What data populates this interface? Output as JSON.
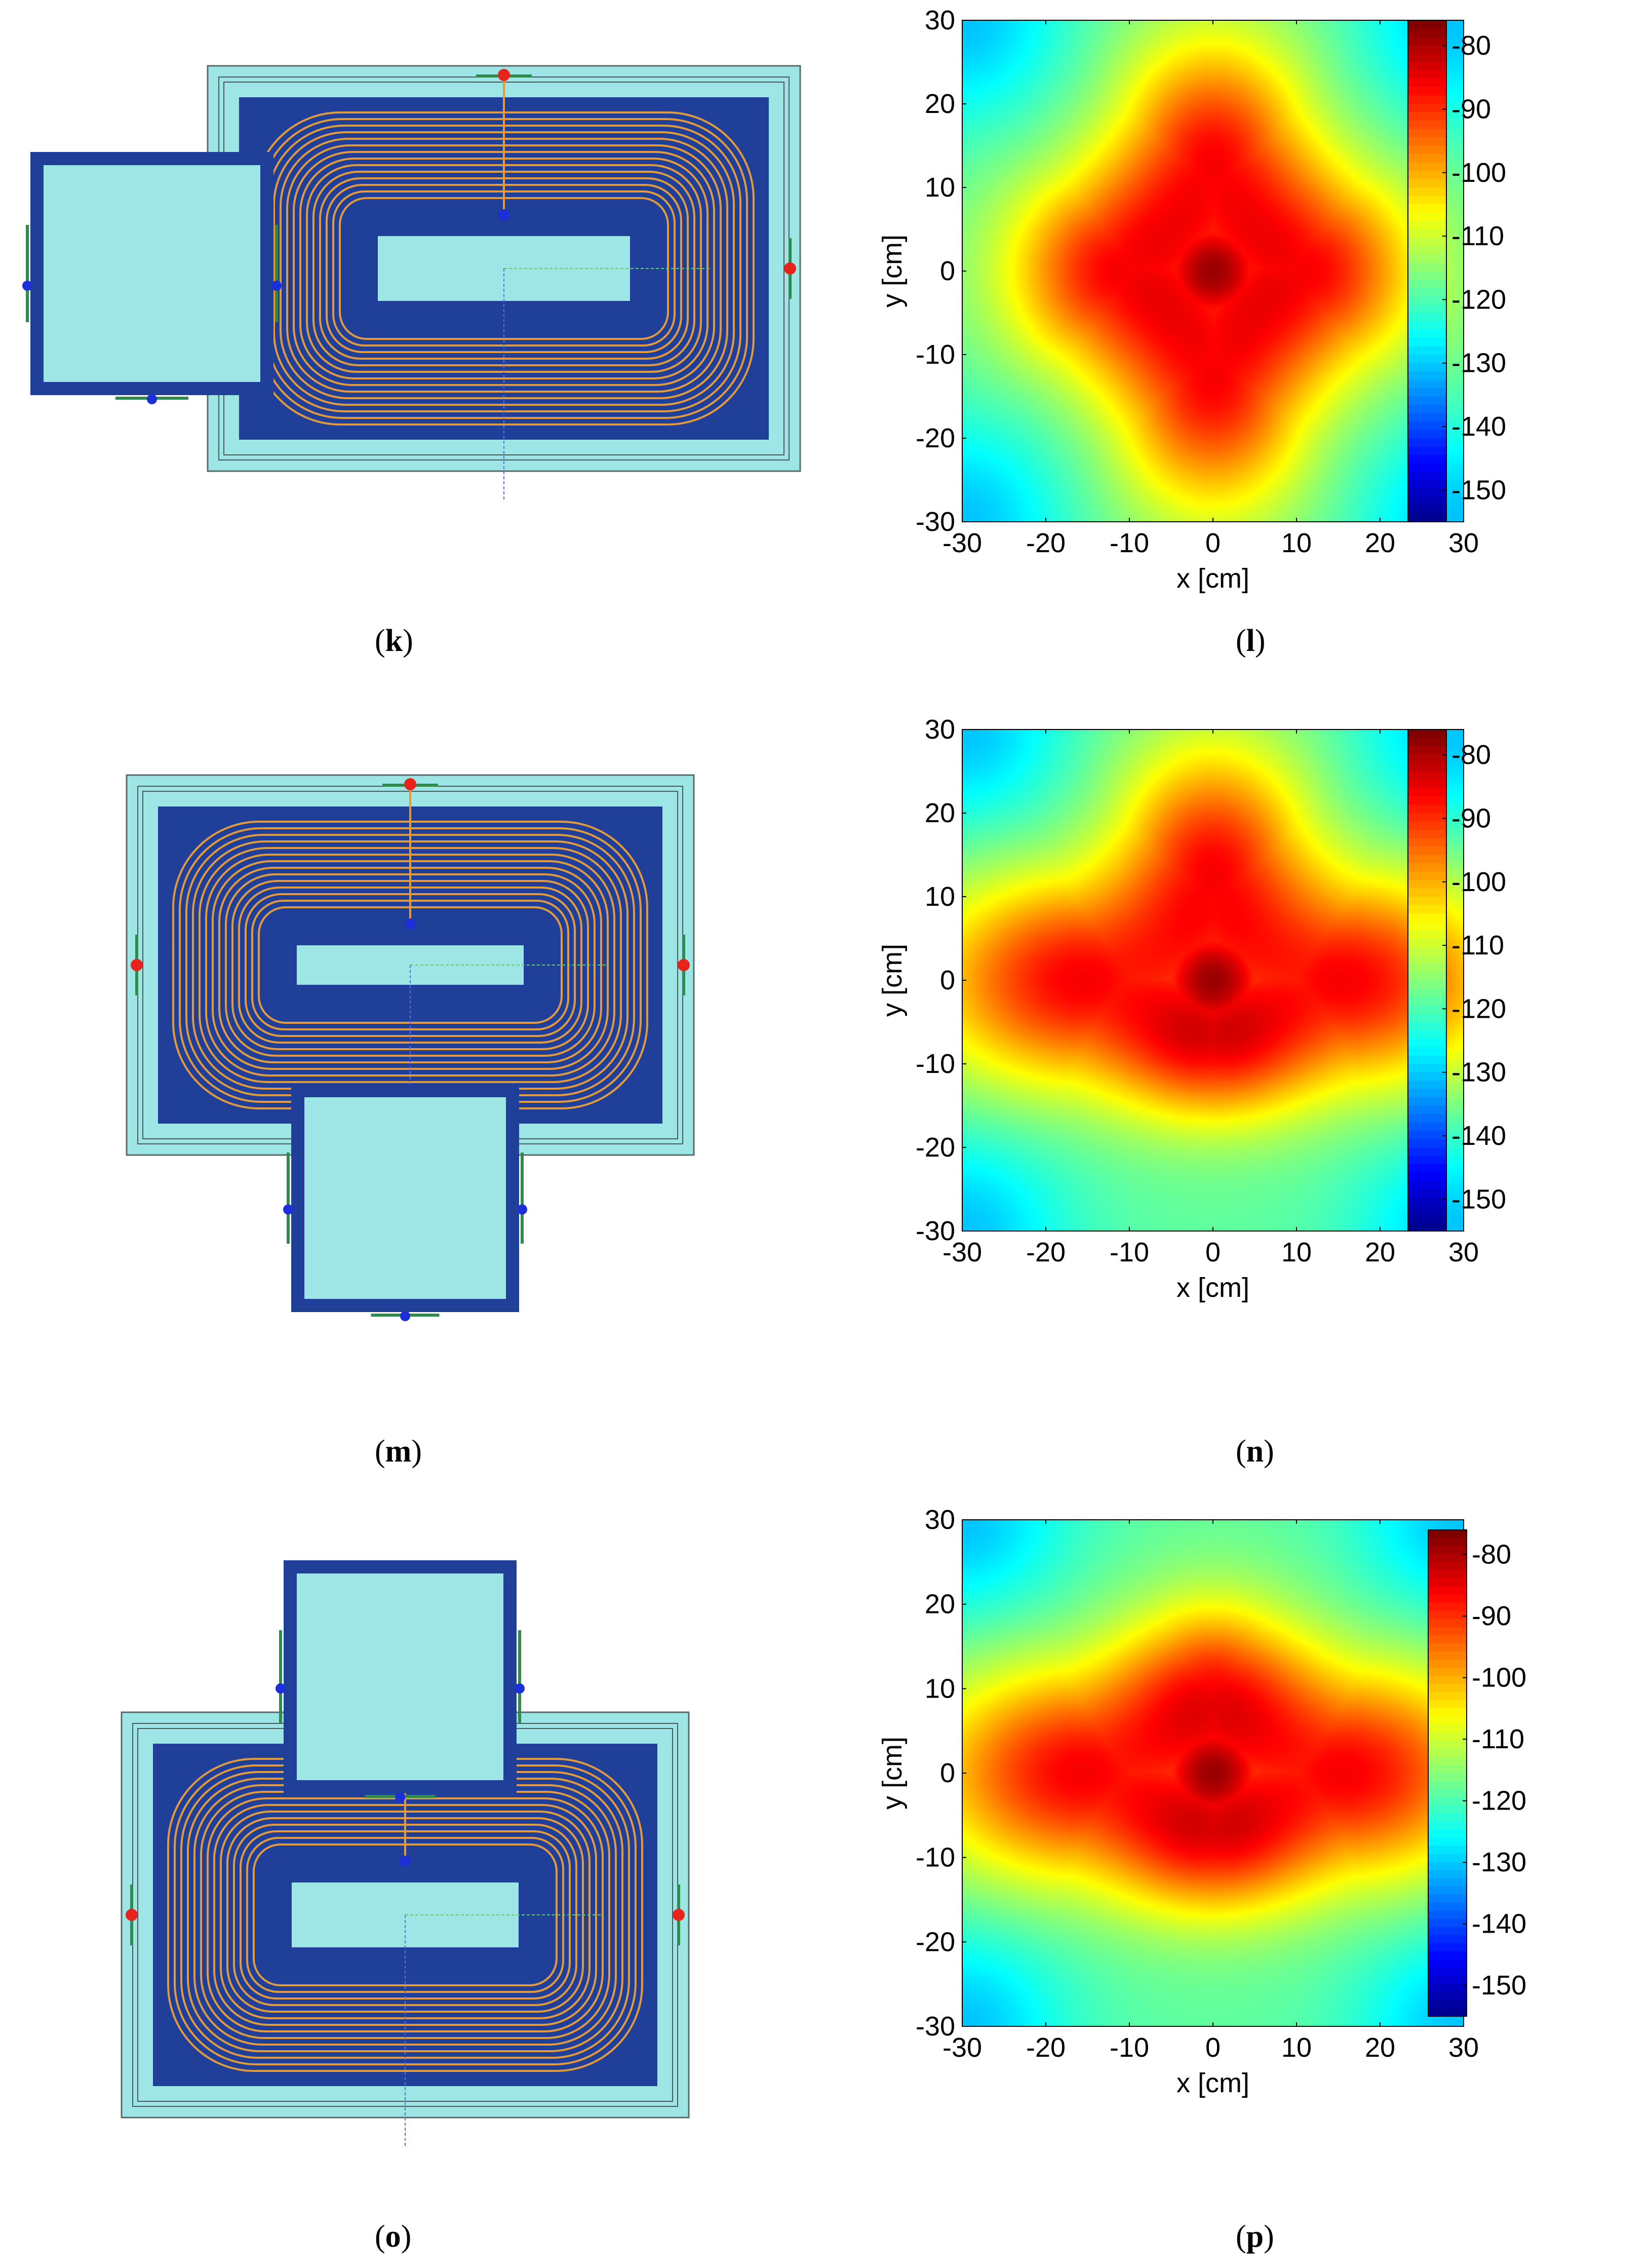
{
  "figure": {
    "panels": [
      {
        "id": "k",
        "kind": "coil-layout",
        "secondary_position": "left",
        "caption_letter": "k"
      },
      {
        "id": "l",
        "kind": "field-map",
        "caption_letter": "l",
        "chart_index": 0
      },
      {
        "id": "m",
        "kind": "coil-layout",
        "secondary_position": "bottom",
        "caption_letter": "m"
      },
      {
        "id": "n",
        "kind": "field-map",
        "caption_letter": "n",
        "chart_index": 1
      },
      {
        "id": "o",
        "kind": "coil-layout",
        "secondary_position": "top",
        "caption_letter": "o"
      },
      {
        "id": "p",
        "kind": "field-map",
        "caption_letter": "p",
        "chart_index": 2
      }
    ],
    "colors": {
      "coil_frame_light": "#9ee6e6",
      "coil_frame_dark": "#1f3f99",
      "winding": "#e39a3a",
      "terminal_red": "#e8231e",
      "terminal_blue": "#1d2fd8",
      "bracket_green": "#2e8b4c"
    }
  },
  "chart_data": [
    {
      "type": "heatmap",
      "xlabel": "x [cm]",
      "ylabel": "y [cm]",
      "xlim": [
        -30,
        30
      ],
      "ylim": [
        -30,
        30
      ],
      "x_ticks": [
        "-30",
        "-20",
        "-10",
        "0",
        "10",
        "20",
        "30"
      ],
      "y_ticks": [
        "30",
        "20",
        "10",
        "0",
        "-10",
        "-20",
        "-30"
      ],
      "colorbar": {
        "ticks": [
          "-80",
          "-90",
          "-100",
          "-110",
          "-120",
          "-130",
          "-140",
          "-150"
        ],
        "range": [
          -155,
          -76
        ],
        "colormap": "jet"
      },
      "peak": {
        "x": 0,
        "y": 0,
        "value": -78
      },
      "shape": "cross",
      "arm_extent_cm": {
        "left": 20,
        "right": 20,
        "up": 25,
        "down": 25
      }
    },
    {
      "type": "heatmap",
      "xlabel": "x [cm]",
      "ylabel": "y [cm]",
      "xlim": [
        -30,
        30
      ],
      "ylim": [
        -30,
        30
      ],
      "x_ticks": [
        "-30",
        "-20",
        "-10",
        "0",
        "10",
        "20",
        "30"
      ],
      "y_ticks": [
        "30",
        "20",
        "10",
        "0",
        "-10",
        "-20",
        "-30"
      ],
      "colorbar": {
        "ticks": [
          "-80",
          "-90",
          "-100",
          "-110",
          "-120",
          "-130",
          "-140",
          "-150"
        ],
        "range": [
          -155,
          -76
        ],
        "colormap": "jet"
      },
      "peak": {
        "x": 0,
        "y": 0,
        "value": -78
      },
      "shape": "cross",
      "arm_extent_cm": {
        "left": 28,
        "right": 28,
        "up": 25,
        "down": 15
      }
    },
    {
      "type": "heatmap",
      "xlabel": "x [cm]",
      "ylabel": "y [cm]",
      "xlim": [
        -30,
        30
      ],
      "ylim": [
        -30,
        30
      ],
      "x_ticks": [
        "-30",
        "-20",
        "-10",
        "0",
        "10",
        "20",
        "30"
      ],
      "y_ticks": [
        "30",
        "20",
        "10",
        "0",
        "-10",
        "-20",
        "-30"
      ],
      "colorbar": {
        "ticks": [
          "-80",
          "-90",
          "-100",
          "-110",
          "-120",
          "-130",
          "-140",
          "-150"
        ],
        "range": [
          -155,
          -76
        ],
        "colormap": "jet"
      },
      "peak": {
        "x": 0,
        "y": 0,
        "value": -78
      },
      "shape": "cross",
      "arm_extent_cm": {
        "left": 28,
        "right": 28,
        "up": 18,
        "down": 15
      }
    }
  ]
}
